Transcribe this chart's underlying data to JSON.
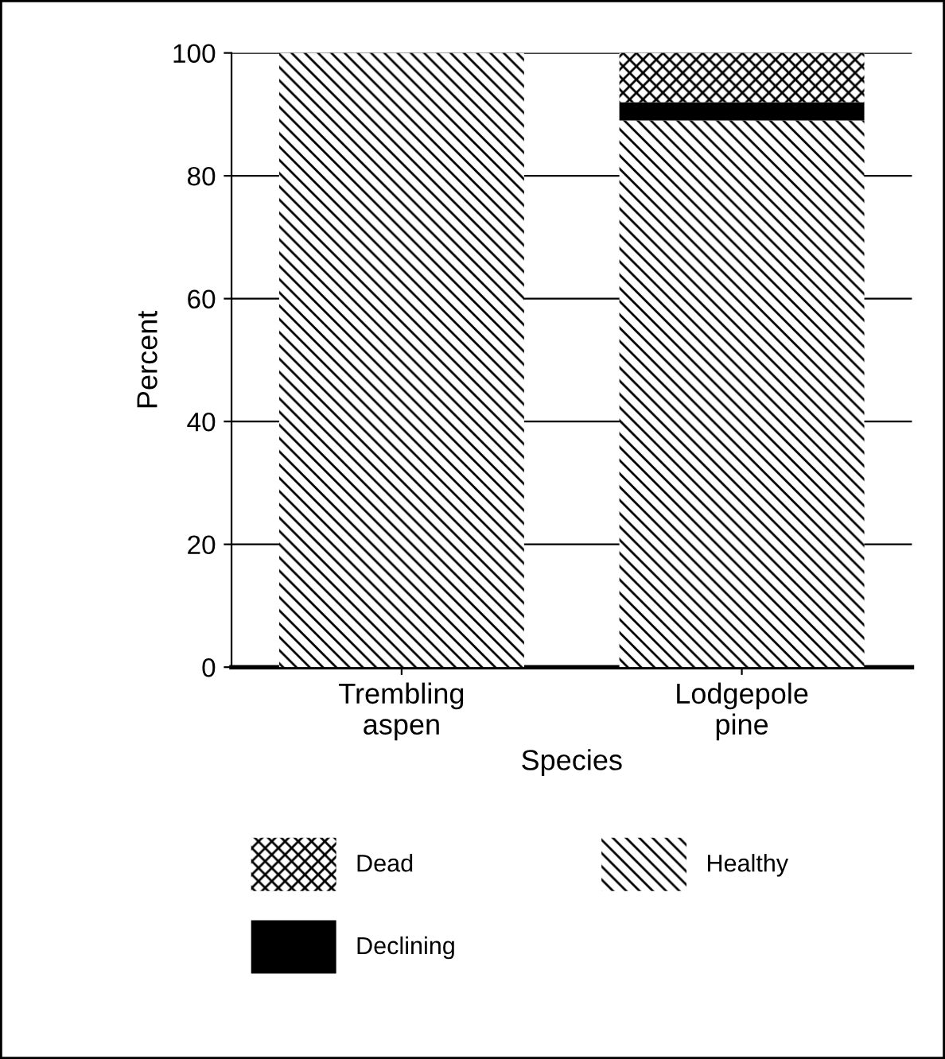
{
  "chart_data": {
    "type": "bar",
    "stacked": true,
    "xlabel": "Species",
    "ylabel": "Percent",
    "categories": [
      "Trembling\naspen",
      "Lodgepole\npine"
    ],
    "series": [
      {
        "name": "Healthy",
        "color": "#000000",
        "values": [
          100,
          89
        ]
      },
      {
        "name": "Declining",
        "color": "#000000",
        "values": [
          0,
          3
        ]
      },
      {
        "name": "Dead",
        "color": "#000000",
        "values": [
          0,
          8
        ]
      }
    ],
    "ylim": [
      0,
      100
    ],
    "yticks": [
      0,
      20,
      40,
      60,
      80,
      100
    ],
    "grid": "y",
    "legend": "bottom"
  }
}
